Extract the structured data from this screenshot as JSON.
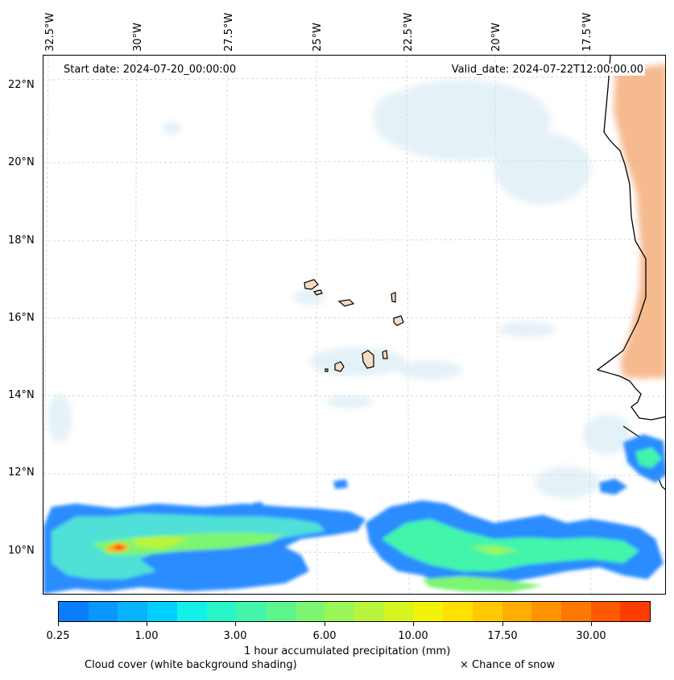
{
  "map": {
    "start_date": "Start date: 2024-07-20_00:00:00",
    "valid_date": "Valid_date: 2024-07-22T12:00:00.00",
    "longitude_labels": [
      "32.5°W",
      "30°W",
      "27.5°W",
      "25°W",
      "22.5°W",
      "20°W",
      "17.5°W"
    ],
    "latitude_labels": [
      "22°N",
      "20°N",
      "18°N",
      "16°N",
      "14°N",
      "12°N",
      "10°N"
    ]
  },
  "legend": {
    "colorbar_title": "1 hour accumulated precipitation (mm)",
    "tick_labels": [
      "0.25",
      "1.00",
      "3.00",
      "6.00",
      "10.00",
      "17.50",
      "30.00"
    ],
    "colors": [
      "#0a7dff",
      "#0a96ff",
      "#07b2ff",
      "#00d0ff",
      "#12f0e8",
      "#28f5c8",
      "#43f5aa",
      "#5ff58e",
      "#7cf572",
      "#9af556",
      "#b8f53a",
      "#d6f51e",
      "#f2f20a",
      "#ffe000",
      "#ffc800",
      "#ffae00",
      "#ff9400",
      "#ff7800",
      "#ff5a00",
      "#ff3c00"
    ],
    "cloud_cover_note": "Cloud cover (white background shading)",
    "snow_note": "× Chance of snow"
  }
}
